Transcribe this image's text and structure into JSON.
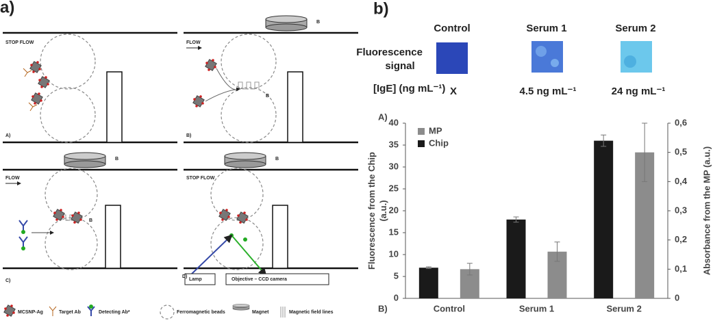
{
  "panel_a": {
    "label": "a)",
    "stop_flow": "STOP FLOW",
    "flow": "FLOW",
    "field_label": "B",
    "sub_labels": [
      "A)",
      "B)",
      "C)",
      "D)"
    ],
    "lamp": "Lamp",
    "camera": "Objective – CCD camera",
    "legend": [
      "MCSNP-Ag",
      "Target Ab",
      "Detecting Ab*",
      "Ferromagnetic beads",
      "Magnet",
      "Magnetic field lines"
    ]
  },
  "panel_b": {
    "label": "b)",
    "columns": [
      "Control",
      "Serum 1",
      "Serum 2"
    ],
    "row_label": [
      "Fluorescence",
      "signal"
    ],
    "ige_label": "[IgE] (ng mL⁻¹)",
    "ige_values": [
      "X",
      "4.5 ng mL⁻¹",
      "24 ng mL⁻¹"
    ],
    "chart_tag": "A)",
    "bottom_tag": "B)"
  },
  "chart_data": {
    "type": "bar",
    "categories": [
      "Control",
      "Serum 1",
      "Serum 2"
    ],
    "y_label": [
      "Fluorescence from the Chip",
      "(a.u.)"
    ],
    "y2_label": "Absorbance from the MP (a.u.)",
    "ylim": [
      0,
      40
    ],
    "yticks": [
      0,
      5,
      10,
      15,
      20,
      25,
      30,
      35,
      40
    ],
    "y2lim": [
      0,
      0.6
    ],
    "y2ticks": [
      0,
      {
        "value": 0.1,
        "label": "0,1"
      },
      {
        "value": 0.2,
        "label": "0,2"
      },
      {
        "value": 0.3,
        "label": "0,3"
      },
      {
        "value": 0.4,
        "label": "0,4"
      },
      {
        "value": 0.5,
        "label": "0,5"
      },
      {
        "value": 0.6,
        "label": "0,6"
      }
    ],
    "legend_position": "upper left",
    "series": [
      {
        "name": "Chip",
        "color": "#1a1a1a",
        "values": [
          7,
          18,
          36
        ],
        "errors": [
          0.2,
          0.6,
          1.3
        ]
      },
      {
        "name": "MP",
        "color": "#8c8c8c",
        "axis": "y2",
        "values": [
          0.1,
          0.16,
          0.5
        ],
        "errors": [
          0.02,
          0.033,
          0.1
        ]
      }
    ]
  }
}
